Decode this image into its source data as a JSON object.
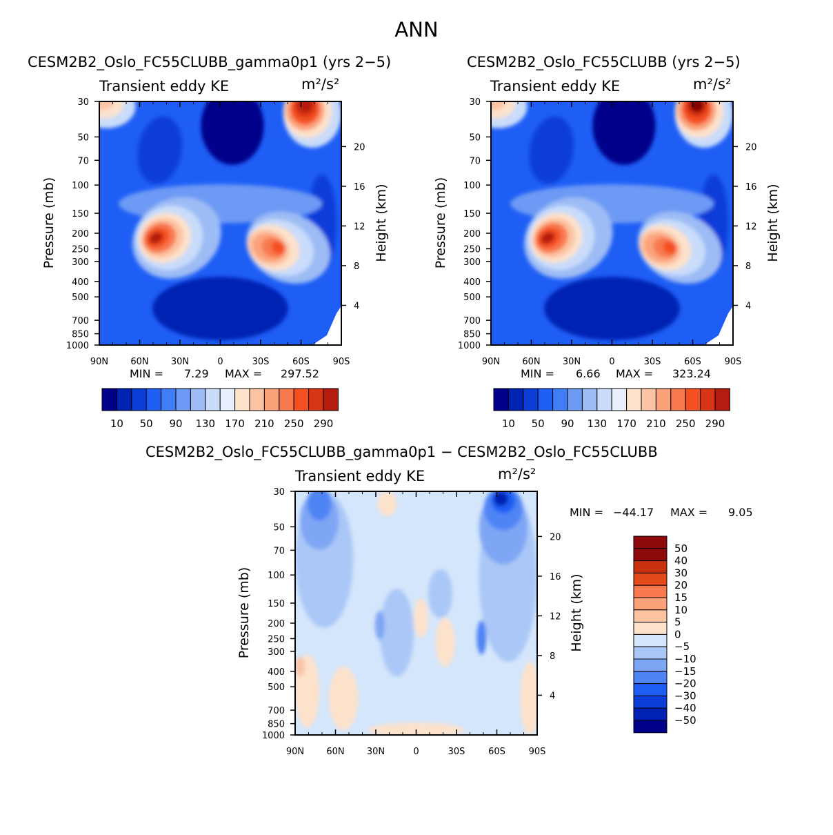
{
  "figure": {
    "title": "ANN"
  },
  "palette": {
    "seq": [
      "#00008a",
      "#0022b3",
      "#0c3ed8",
      "#1e5ef5",
      "#3f7ef7",
      "#6d9af5",
      "#9dbcf5",
      "#c9dcfa",
      "#e8f0fd",
      "#fde2cc",
      "#fcc3a3",
      "#fba27a",
      "#f8794f",
      "#f44f20",
      "#d83416",
      "#b51c10",
      "#860000"
    ],
    "div": [
      "#00008a",
      "#0022b3",
      "#0c3ed8",
      "#1e5ef5",
      "#4f84f5",
      "#7fa6f4",
      "#aac7f7",
      "#d4e6fb",
      "#fde2cc",
      "#fcc3a3",
      "#fba27a",
      "#f8794f",
      "#e24a1a",
      "#c7310e",
      "#8e0a0a"
    ]
  },
  "chart_data": [
    {
      "type": "contour",
      "panel_title": "CESM2B2_Oslo_FC55CLUBB_gamma0p1 (yrs 2−5)",
      "subtitle_left": "Transient eddy KE",
      "units_label": "m²/s²",
      "xlabel": "",
      "ylabel": "Pressure (mb)",
      "y2label": "Height (km)",
      "x_ticks": [
        "90N",
        "60N",
        "30N",
        "0",
        "30S",
        "60S",
        "90S"
      ],
      "x_range": [
        90,
        -90
      ],
      "y_ticks": [
        30,
        50,
        70,
        100,
        150,
        200,
        250,
        300,
        400,
        500,
        700,
        850,
        1000
      ],
      "y_range": [
        30,
        1000
      ],
      "y2_ticks": [
        4,
        8,
        12,
        16,
        20
      ],
      "min": "7.29",
      "max": "297.52",
      "min_label": "MIN =",
      "max_label": "MAX =",
      "colorbar_labels": [
        "10",
        "50",
        "90",
        "130",
        "170",
        "210",
        "250",
        "290"
      ],
      "colorbar_levels": [
        10,
        30,
        50,
        70,
        90,
        110,
        130,
        150,
        170,
        190,
        210,
        230,
        250,
        270,
        290
      ]
    },
    {
      "type": "contour",
      "panel_title": "CESM2B2_Oslo_FC55CLUBB (yrs 2−5)",
      "subtitle_left": "Transient eddy KE",
      "units_label": "m²/s²",
      "xlabel": "",
      "ylabel": "Pressure (mb)",
      "y2label": "Height (km)",
      "x_ticks": [
        "90N",
        "60N",
        "30N",
        "0",
        "30S",
        "60S",
        "90S"
      ],
      "x_range": [
        90,
        -90
      ],
      "y_ticks": [
        30,
        50,
        70,
        100,
        150,
        200,
        250,
        300,
        400,
        500,
        700,
        850,
        1000
      ],
      "y_range": [
        30,
        1000
      ],
      "y2_ticks": [
        4,
        8,
        12,
        16,
        20
      ],
      "min": "6.66",
      "max": "323.24",
      "min_label": "MIN =",
      "max_label": "MAX =",
      "colorbar_labels": [
        "10",
        "50",
        "90",
        "130",
        "170",
        "210",
        "250",
        "290"
      ],
      "colorbar_levels": [
        10,
        30,
        50,
        70,
        90,
        110,
        130,
        150,
        170,
        190,
        210,
        230,
        250,
        270,
        290
      ]
    },
    {
      "type": "contour",
      "panel_title": "CESM2B2_Oslo_FC55CLUBB_gamma0p1 − CESM2B2_Oslo_FC55CLUBB",
      "subtitle_left": "Transient eddy KE",
      "units_label": "m²/s²",
      "xlabel": "",
      "ylabel": "Pressure (mb)",
      "y2label": "Height (km)",
      "x_ticks": [
        "90N",
        "60N",
        "30N",
        "0",
        "30S",
        "60S",
        "90S"
      ],
      "x_range": [
        90,
        -90
      ],
      "y_ticks": [
        30,
        50,
        70,
        100,
        150,
        200,
        250,
        300,
        400,
        500,
        700,
        850,
        1000
      ],
      "y_range": [
        30,
        1000
      ],
      "y2_ticks": [
        4,
        8,
        12,
        16,
        20
      ],
      "min": "−44.17",
      "max": "9.05",
      "min_label": "MIN =",
      "max_label": "MAX =",
      "colorbar_labels": [
        "50",
        "40",
        "30",
        "20",
        "15",
        "10",
        "5",
        "0",
        "−5",
        "−10",
        "−15",
        "−20",
        "−30",
        "−40",
        "−50"
      ],
      "colorbar_levels": [
        -50,
        -40,
        -30,
        -20,
        -15,
        -10,
        -5,
        0,
        5,
        10,
        15,
        20,
        30,
        40,
        50
      ]
    }
  ]
}
